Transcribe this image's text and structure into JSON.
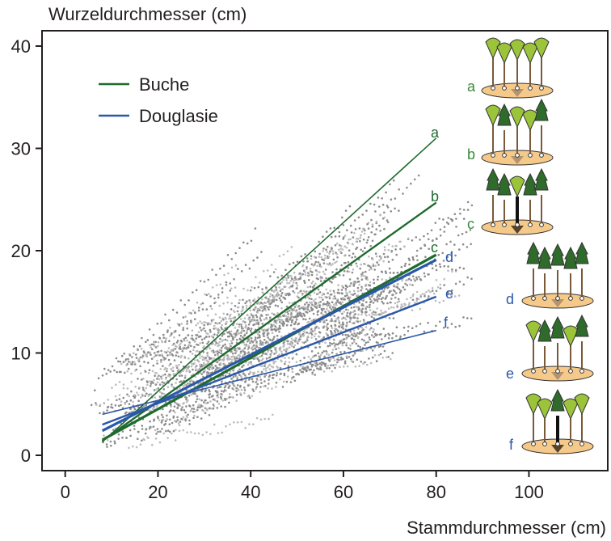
{
  "chart_data": {
    "type": "scatter",
    "xlabel": "Stammdurchmesser (cm)",
    "ylabel": "Wurzeldurchmesser (cm)",
    "xlim": [
      -5,
      117
    ],
    "ylim": [
      -1.5,
      41.5
    ],
    "xticks": [
      0,
      20,
      40,
      60,
      80,
      100
    ],
    "yticks": [
      0,
      10,
      20,
      30,
      40
    ],
    "grid": false,
    "legend_position": "top-left",
    "legend": [
      {
        "label": "Buche",
        "color": "#1e6b2e"
      },
      {
        "label": "Douglasie",
        "color": "#2a58a8"
      }
    ],
    "series": [
      {
        "label": "a",
        "species": "Buche",
        "x": [
          8,
          80
        ],
        "y": [
          1.3,
          31.0
        ],
        "color": "#1e6b2e"
      },
      {
        "label": "b",
        "species": "Buche",
        "x": [
          8,
          80
        ],
        "y": [
          1.4,
          24.7
        ],
        "color": "#1e6b2e"
      },
      {
        "label": "c",
        "species": "Buche",
        "x": [
          8,
          80
        ],
        "y": [
          1.5,
          19.6
        ],
        "color": "#1e6b2e"
      },
      {
        "label": "d",
        "species": "Douglasie",
        "x": [
          8,
          80
        ],
        "y": [
          2.4,
          19.1
        ],
        "color": "#2a58a8"
      },
      {
        "label": "e",
        "species": "Douglasie",
        "x": [
          8,
          80
        ],
        "y": [
          3.0,
          15.5
        ],
        "color": "#2a58a8"
      },
      {
        "label": "f",
        "species": "Douglasie",
        "x": [
          8,
          80
        ],
        "y": [
          4.0,
          12.2
        ],
        "color": "#2a58a8"
      }
    ],
    "scatter_points": {
      "description_note": "",
      "colors": [
        "#8c8c8c",
        "#bdbdbd"
      ]
    }
  },
  "scenarios": [
    {
      "label": "a",
      "color": "#3a8a3a"
    },
    {
      "label": "b",
      "color": "#3a8a3a"
    },
    {
      "label": "c",
      "color": "#3a8a3a"
    },
    {
      "label": "d",
      "color": "#2a58a8"
    },
    {
      "label": "e",
      "color": "#2a58a8"
    },
    {
      "label": "f",
      "color": "#2a58a8"
    }
  ]
}
